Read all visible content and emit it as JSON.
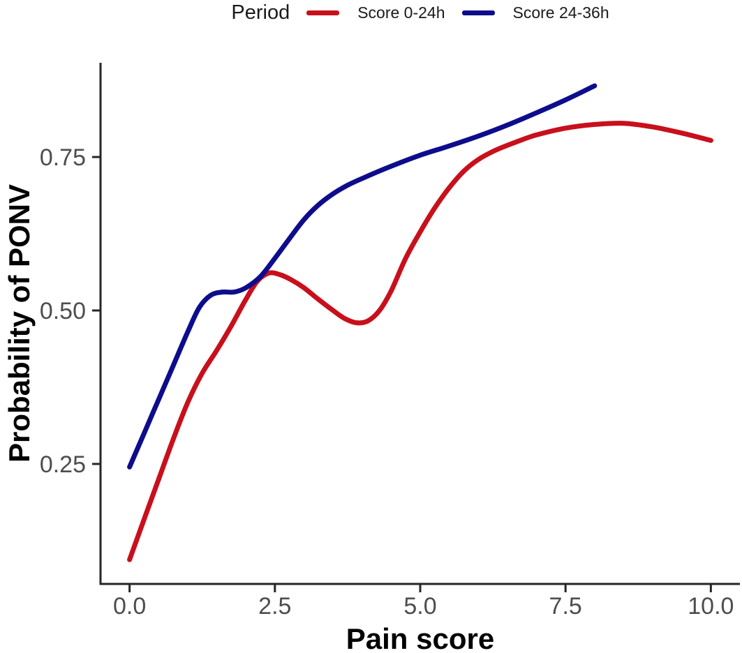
{
  "figure": {
    "background": "#ffffff",
    "legend": {
      "title": "Period",
      "items": [
        {
          "label": "Score 0-24h",
          "color": "#c8101c"
        },
        {
          "label": "Score 24-36h",
          "color": "#0d0d8c"
        }
      ]
    }
  },
  "chart_data": {
    "type": "line",
    "title": "",
    "xlabel": "Pain score",
    "ylabel": "Probability of PONV",
    "xlim": [
      -0.5,
      10.5
    ],
    "ylim": [
      0.0545,
      0.9035
    ],
    "x_ticks": [
      0.0,
      2.5,
      5.0,
      7.5,
      10.0
    ],
    "x_tick_labels": [
      "0.0",
      "2.5",
      "5.0",
      "7.5",
      "10.0"
    ],
    "y_ticks": [
      0.25,
      0.5,
      0.75
    ],
    "y_tick_labels": [
      "0.25",
      "0.50",
      "0.75"
    ],
    "grid": false,
    "legend_position": "top",
    "legend_title": "Period",
    "colors": {
      "axis_line": "#262626",
      "tick_label": "#4d4d4d",
      "axis_title": "#000000"
    },
    "series": [
      {
        "name": "Score 0-24h",
        "color": "#c8101c",
        "points": [
          [
            0,
            0.094
          ],
          [
            0.25,
            0.16
          ],
          [
            0.5,
            0.225
          ],
          [
            0.75,
            0.29
          ],
          [
            1,
            0.35
          ],
          [
            1.25,
            0.398
          ],
          [
            1.5,
            0.435
          ],
          [
            1.75,
            0.475
          ],
          [
            2,
            0.518
          ],
          [
            2.2,
            0.548
          ],
          [
            2.4,
            0.561
          ],
          [
            2.6,
            0.558
          ],
          [
            2.8,
            0.549
          ],
          [
            3,
            0.537
          ],
          [
            3.25,
            0.518
          ],
          [
            3.5,
            0.5
          ],
          [
            3.7,
            0.487
          ],
          [
            3.9,
            0.48
          ],
          [
            4.1,
            0.483
          ],
          [
            4.3,
            0.5
          ],
          [
            4.5,
            0.532
          ],
          [
            4.75,
            0.585
          ],
          [
            5,
            0.628
          ],
          [
            5.25,
            0.667
          ],
          [
            5.5,
            0.7
          ],
          [
            5.75,
            0.727
          ],
          [
            6,
            0.746
          ],
          [
            6.25,
            0.759
          ],
          [
            6.5,
            0.769
          ],
          [
            6.75,
            0.778
          ],
          [
            7,
            0.786
          ],
          [
            7.5,
            0.797
          ],
          [
            8,
            0.803
          ],
          [
            8.5,
            0.805
          ],
          [
            9,
            0.799
          ],
          [
            9.5,
            0.789
          ],
          [
            10,
            0.777
          ]
        ]
      },
      {
        "name": "Score 24-36h",
        "color": "#0d0d8c",
        "points": [
          [
            0,
            0.245
          ],
          [
            0.25,
            0.3
          ],
          [
            0.5,
            0.355
          ],
          [
            0.75,
            0.41
          ],
          [
            1,
            0.465
          ],
          [
            1.2,
            0.505
          ],
          [
            1.4,
            0.525
          ],
          [
            1.6,
            0.53
          ],
          [
            1.8,
            0.53
          ],
          [
            2,
            0.537
          ],
          [
            2.25,
            0.555
          ],
          [
            2.5,
            0.585
          ],
          [
            2.75,
            0.617
          ],
          [
            3,
            0.648
          ],
          [
            3.25,
            0.672
          ],
          [
            3.5,
            0.69
          ],
          [
            3.75,
            0.704
          ],
          [
            4,
            0.715
          ],
          [
            4.5,
            0.735
          ],
          [
            5,
            0.753
          ],
          [
            5.5,
            0.768
          ],
          [
            6,
            0.784
          ],
          [
            6.5,
            0.802
          ],
          [
            7,
            0.822
          ],
          [
            7.5,
            0.843
          ],
          [
            8,
            0.866
          ]
        ]
      }
    ]
  }
}
